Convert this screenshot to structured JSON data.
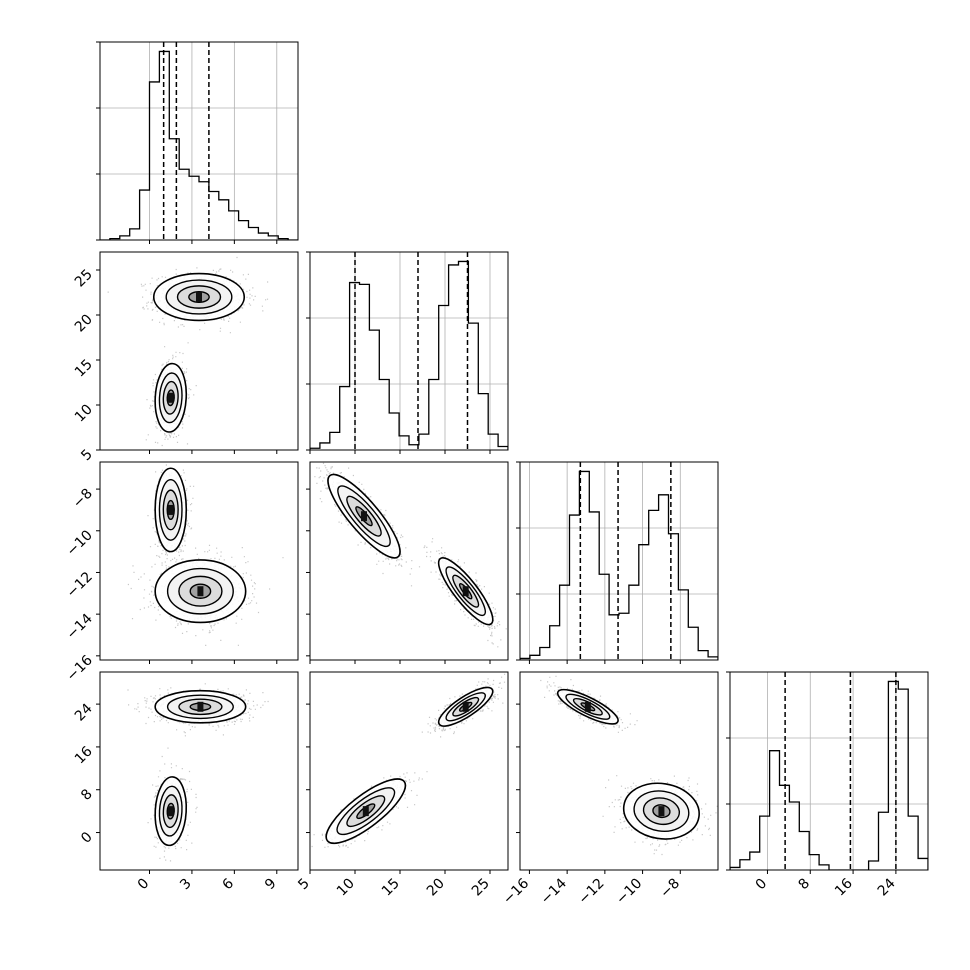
{
  "chart_data": {
    "type": "corner",
    "title": "",
    "parameters": [
      {
        "xlim": [
          -3.5,
          10.5
        ],
        "ticks": [
          0,
          3,
          6,
          9
        ],
        "tick_labels": [
          "0",
          "3",
          "6",
          "9"
        ],
        "quantiles": [
          1.0,
          1.9,
          4.2
        ],
        "histogram": {
          "bin_edges": [
            -3.5,
            -2.8,
            -2.1,
            -1.4,
            -0.7,
            0.0,
            0.7,
            1.4,
            2.1,
            2.8,
            3.5,
            4.2,
            4.9,
            5.6,
            6.3,
            7.0,
            7.7,
            8.4,
            9.1,
            9.8,
            10.5
          ],
          "counts": [
            0,
            1,
            3,
            8,
            36,
            114,
            136,
            73,
            51,
            46,
            42,
            35,
            29,
            21,
            14,
            9,
            5,
            3,
            1,
            0
          ]
        }
      },
      {
        "xlim": [
          5,
          27
        ],
        "ticks": [
          5,
          10,
          15,
          20,
          25
        ],
        "tick_labels": [
          "5",
          "10",
          "15",
          "20",
          "25"
        ],
        "quantiles": [
          10.0,
          17.0,
          22.5
        ],
        "histogram": {
          "bin_edges": [
            5.0,
            6.1,
            7.2,
            8.3,
            9.4,
            10.5,
            11.6,
            12.7,
            13.8,
            14.9,
            16.0,
            17.1,
            18.2,
            19.3,
            20.4,
            21.5,
            22.6,
            23.7,
            24.8,
            25.9,
            27.0
          ],
          "counts": [
            1,
            4,
            10,
            36,
            95,
            94,
            68,
            40,
            21,
            8,
            3,
            9,
            40,
            82,
            105,
            107,
            72,
            32,
            9,
            2
          ]
        }
      },
      {
        "xlim": [
          -16.5,
          -6
        ],
        "ticks": [
          -16,
          -14,
          -12,
          -10,
          -8
        ],
        "tick_labels": [
          "−16",
          "−14",
          "−12",
          "−10",
          "−8"
        ],
        "quantiles": [
          -13.3,
          -11.3,
          -8.5
        ],
        "histogram": {
          "bin_edges": [
            -16.5,
            -15.975,
            -15.45,
            -14.925,
            -14.4,
            -13.875,
            -13.35,
            -12.825,
            -12.3,
            -11.775,
            -11.25,
            -10.725,
            -10.2,
            -9.675,
            -9.15,
            -8.625,
            -8.1,
            -7.575,
            -7.05,
            -6.525,
            -6.0
          ],
          "counts": [
            1,
            3,
            8,
            22,
            48,
            93,
            121,
            95,
            55,
            29,
            30,
            48,
            74,
            96,
            106,
            81,
            45,
            21,
            6,
            2
          ]
        }
      },
      {
        "xlim": [
          -7,
          30
        ],
        "ticks": [
          0,
          8,
          16,
          24
        ],
        "tick_labels": [
          "0",
          "8",
          "16",
          "24"
        ],
        "quantiles": [
          3.3,
          15.5,
          24.0
        ],
        "histogram": {
          "bin_edges": [
            -7.0,
            -5.15,
            -3.3,
            -1.45,
            0.4,
            2.25,
            4.1,
            5.95,
            7.8,
            9.65,
            11.5,
            13.35,
            15.2,
            17.05,
            18.9,
            20.75,
            22.6,
            24.45,
            26.3,
            28.15,
            30.0
          ],
          "counts": [
            2,
            8,
            14,
            42,
            93,
            66,
            53,
            30,
            12,
            4,
            0,
            0,
            0,
            0,
            7,
            45,
            147,
            141,
            42,
            9
          ]
        }
      }
    ],
    "pairs": [
      {
        "row": 1,
        "col": 0,
        "ylim": [
          5,
          27
        ],
        "yticks": [
          5,
          10,
          15,
          20,
          25
        ],
        "ytick_labels": [
          "5",
          "10",
          "15",
          "20",
          "25"
        ],
        "clusters": [
          {
            "mx": 3.5,
            "my": 22.0,
            "sx": 1.6,
            "sy": 1.3,
            "rho": 0.0,
            "n": 900
          },
          {
            "mx": 1.5,
            "my": 10.8,
            "sx": 0.55,
            "sy": 1.9,
            "rho": 0.1,
            "n": 700
          }
        ]
      },
      {
        "row": 2,
        "col": 0,
        "ylim": [
          -16.2,
          -6.7
        ],
        "yticks": [
          -16,
          -14,
          -12,
          -10,
          -8
        ],
        "ytick_labels": [
          "−16",
          "−14",
          "−12",
          "−10",
          "−8"
        ],
        "clusters": [
          {
            "mx": 1.5,
            "my": -9.0,
            "sx": 0.55,
            "sy": 1.0,
            "rho": 0.0,
            "n": 700
          },
          {
            "mx": 3.6,
            "my": -12.9,
            "sx": 1.6,
            "sy": 0.75,
            "rho": 0.0,
            "n": 900
          }
        ]
      },
      {
        "row": 2,
        "col": 1,
        "ylim": [
          -16.2,
          -6.7
        ],
        "yticks": [
          -16,
          -14,
          -12,
          -10,
          -8
        ],
        "ytick_labels": [
          "",
          "",
          "",
          "",
          ""
        ],
        "clusters": [
          {
            "mx": 11.0,
            "my": -9.3,
            "sx": 2.0,
            "sy": 1.0,
            "rho": -0.85,
            "n": 700
          },
          {
            "mx": 22.3,
            "my": -12.9,
            "sx": 1.5,
            "sy": 0.8,
            "rho": -0.85,
            "n": 900
          }
        ]
      },
      {
        "row": 3,
        "col": 0,
        "ylim": [
          -7,
          30
        ],
        "yticks": [
          0,
          8,
          16,
          24
        ],
        "ytick_labels": [
          "0",
          "8",
          "16",
          "24"
        ],
        "clusters": [
          {
            "mx": 3.6,
            "my": 23.5,
            "sx": 1.6,
            "sy": 1.5,
            "rho": 0.0,
            "n": 900
          },
          {
            "mx": 1.5,
            "my": 4.0,
            "sx": 0.55,
            "sy": 3.2,
            "rho": 0.1,
            "n": 700
          }
        ]
      },
      {
        "row": 3,
        "col": 1,
        "ylim": [
          -7,
          30
        ],
        "yticks": [
          0,
          8,
          16,
          24
        ],
        "ytick_labels": [
          "",
          "",
          "",
          ""
        ],
        "clusters": [
          {
            "mx": 22.3,
            "my": 23.5,
            "sx": 1.5,
            "sy": 1.8,
            "rho": 0.8,
            "n": 900
          },
          {
            "mx": 11.2,
            "my": 4.0,
            "sx": 2.2,
            "sy": 3.0,
            "rho": 0.8,
            "n": 700
          }
        ]
      },
      {
        "row": 3,
        "col": 2,
        "ylim": [
          -7,
          30
        ],
        "yticks": [
          0,
          8,
          16,
          24
        ],
        "ytick_labels": [
          "",
          "",
          "",
          ""
        ],
        "clusters": [
          {
            "mx": -12.9,
            "my": 23.5,
            "sx": 0.8,
            "sy": 1.6,
            "rho": -0.8,
            "n": 900
          },
          {
            "mx": -9.0,
            "my": 4.0,
            "sx": 1.0,
            "sy": 2.6,
            "rho": -0.1,
            "n": 700
          }
        ]
      }
    ],
    "grid": true,
    "legend": "none"
  }
}
